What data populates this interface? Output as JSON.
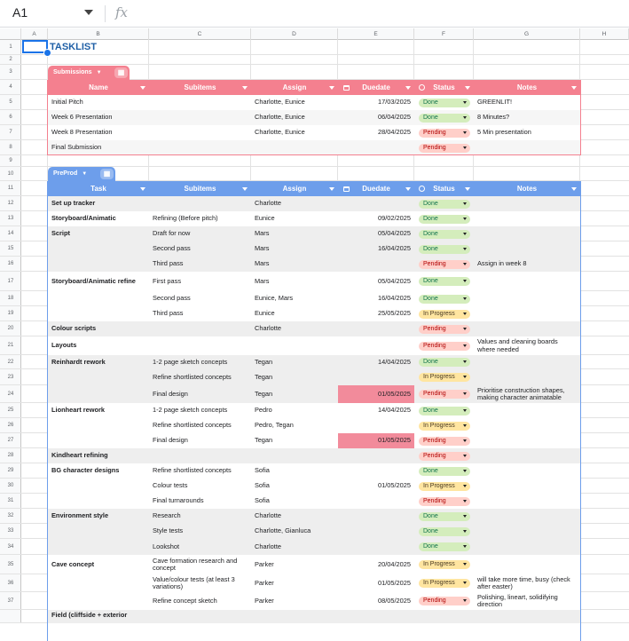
{
  "cell_ref": "A1",
  "formula_icon": "fx",
  "columns": [
    "A",
    "B",
    "C",
    "D",
    "E",
    "F",
    "G",
    "H"
  ],
  "rows": [
    "1",
    "2",
    "3",
    "4",
    "5",
    "6",
    "7",
    "8",
    "9",
    "10",
    "11",
    "12",
    "13",
    "14",
    "15",
    "16",
    "17",
    "18",
    "19",
    "20",
    "21",
    "22",
    "23",
    "24",
    "25",
    "26",
    "27",
    "28",
    "29",
    "30",
    "31",
    "32",
    "33",
    "34",
    "35",
    "36",
    "37",
    ""
  ],
  "title": "TASKLIST",
  "submissions": {
    "tab_label": "Submissions",
    "headers": [
      "Name",
      "Subitems",
      "Assign",
      "Duedate",
      "Status",
      "Notes"
    ],
    "rows": [
      {
        "name": "Initial Pitch",
        "sub": "",
        "assign": "Charlotte, Eunice",
        "due": "17/03/2025",
        "status": "Done",
        "notes": "GREENLIT!"
      },
      {
        "name": "Week 6 Presentation",
        "sub": "",
        "assign": "Charlotte, Eunice",
        "due": "06/04/2025",
        "status": "Done",
        "notes": "8 Minutes?"
      },
      {
        "name": "Week 8 Presentation",
        "sub": "",
        "assign": "Charlotte, Eunice",
        "due": "28/04/2025",
        "status": "Pending",
        "notes": "5 Min presentation"
      },
      {
        "name": "Final Submission",
        "sub": "",
        "assign": "",
        "due": "",
        "status": "Pending",
        "notes": ""
      }
    ]
  },
  "preprod": {
    "tab_label": "PreProd",
    "headers": [
      "Task",
      "Subitems",
      "Assign",
      "Duedate",
      "Status",
      "Notes"
    ],
    "rows": [
      {
        "task": "Set up tracker",
        "sub": "",
        "assign": "Charlotte",
        "due": "",
        "status": "Done",
        "notes": ""
      },
      {
        "task": "Storyboard/Animatic",
        "sub": "Refining (Before pitch)",
        "assign": "Eunice",
        "due": "09/02/2025",
        "status": "Done",
        "notes": ""
      },
      {
        "task": "Script",
        "sub": "Draft for now",
        "assign": "Mars",
        "due": "05/04/2025",
        "status": "Done",
        "notes": ""
      },
      {
        "task": "",
        "sub": "Second pass",
        "assign": "Mars",
        "due": "16/04/2025",
        "status": "Done",
        "notes": ""
      },
      {
        "task": "",
        "sub": "Third pass",
        "assign": "Mars",
        "due": "",
        "status": "Pending",
        "notes": "Assign in week 8"
      },
      {
        "task": "Storyboard/Animatic refine",
        "sub": "First pass",
        "assign": "Mars",
        "due": "05/04/2025",
        "status": "Done",
        "notes": ""
      },
      {
        "task": "",
        "sub": "Second pass",
        "assign": "Eunice, Mars",
        "due": "16/04/2025",
        "status": "Done",
        "notes": ""
      },
      {
        "task": "",
        "sub": "Third pass",
        "assign": "Eunice",
        "due": "25/05/2025",
        "status": "In Progress",
        "notes": ""
      },
      {
        "task": "Colour scripts",
        "sub": "",
        "assign": "Charlotte",
        "due": "",
        "status": "Pending",
        "notes": ""
      },
      {
        "task": "Layouts",
        "sub": "",
        "assign": "",
        "due": "",
        "status": "Pending",
        "notes": "Values and cleaning boards where needed"
      },
      {
        "task": "Reinhardt rework",
        "sub": "1-2 page sketch concepts",
        "assign": "Tegan",
        "due": "14/04/2025",
        "status": "Done",
        "notes": ""
      },
      {
        "task": "",
        "sub": "Refine shortlisted concepts",
        "assign": "Tegan",
        "due": "",
        "status": "In Progress",
        "notes": ""
      },
      {
        "task": "",
        "sub": "Final design",
        "assign": "Tegan",
        "due": "01/05/2025",
        "status": "Pending",
        "notes": "Prioritise construction shapes, making character animatable"
      },
      {
        "task": "Lionheart rework",
        "sub": "1-2 page sketch concepts",
        "assign": "Pedro",
        "due": "14/04/2025",
        "status": "Done",
        "notes": ""
      },
      {
        "task": "",
        "sub": "Refine shortlisted concepts",
        "assign": "Pedro, Tegan",
        "due": "",
        "status": "In Progress",
        "notes": ""
      },
      {
        "task": "",
        "sub": "Final design",
        "assign": "Tegan",
        "due": "01/05/2025",
        "status": "Pending",
        "notes": ""
      },
      {
        "task": "Kindheart refining",
        "sub": "",
        "assign": "",
        "due": "",
        "status": "Pending",
        "notes": ""
      },
      {
        "task": "BG character designs",
        "sub": "Refine shortlisted concepts",
        "assign": "Sofia",
        "due": "",
        "status": "Done",
        "notes": ""
      },
      {
        "task": "",
        "sub": "Colour tests",
        "assign": "Sofia",
        "due": "01/05/2025",
        "status": "In Progress",
        "notes": ""
      },
      {
        "task": "",
        "sub": "Final turnarounds",
        "assign": "Sofia",
        "due": "",
        "status": "Pending",
        "notes": ""
      },
      {
        "task": "Environment style",
        "sub": "Research",
        "assign": "Charlotte",
        "due": "",
        "status": "Done",
        "notes": ""
      },
      {
        "task": "",
        "sub": "Style tests",
        "assign": "Charlotte, Gianluca",
        "due": "",
        "status": "Done",
        "notes": ""
      },
      {
        "task": "",
        "sub": "Lookshot",
        "assign": "Charlotte",
        "due": "",
        "status": "Done",
        "notes": ""
      },
      {
        "task": "Cave concept",
        "sub": "Cave formation research and concept",
        "assign": "Parker",
        "due": "20/04/2025",
        "status": "In Progress",
        "notes": ""
      },
      {
        "task": "",
        "sub": "Value/colour tests (at least 3 variations)",
        "assign": "Parker",
        "due": "01/05/2025",
        "status": "In Progress",
        "notes": "will take more time, busy (check after easter)"
      },
      {
        "task": "",
        "sub": "Refine concept sketch",
        "assign": "Parker",
        "due": "08/05/2025",
        "status": "Pending",
        "notes": "Polishing, lineart, solidifying direction"
      },
      {
        "task": "Field (cliffside + exterior",
        "sub": "",
        "assign": "",
        "due": "",
        "status": "",
        "notes": ""
      }
    ]
  },
  "colors": {
    "submissions_header": "#f4808f",
    "preprod_header": "#6d9eeb",
    "title": "#1f5fa6",
    "overdue_cell": "#f28b9b"
  }
}
